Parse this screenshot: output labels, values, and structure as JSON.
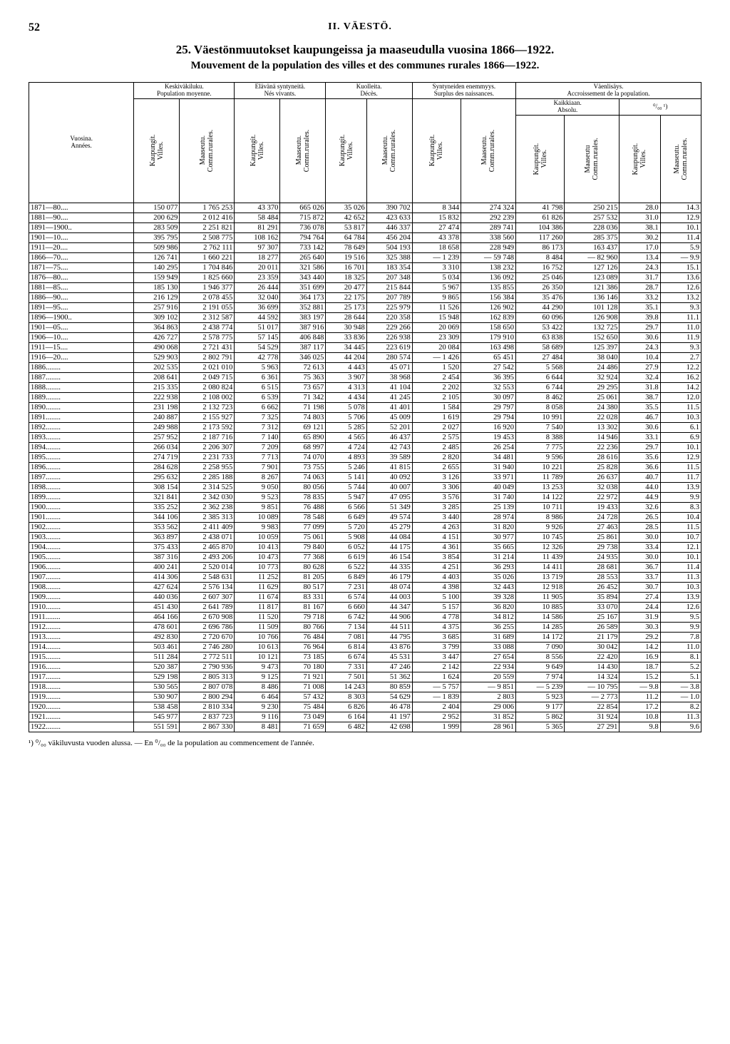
{
  "page_number": "52",
  "chapter": "II. VÄESTÖ.",
  "title_fi": "25. Väestönmuutokset kaupungeissa ja maaseudulla vuosina 1866—1922.",
  "title_fr": "Mouvement de la population des villes et des communes rurales 1866—1922.",
  "headers": {
    "col_year_a": "Vuosina.",
    "col_year_b": "Années.",
    "grp1_a": "Keskiväkiluku.",
    "grp1_b": "Population moyenne.",
    "grp2_a": "Elävänä syntyneitä.",
    "grp2_b": "Nés vivants.",
    "grp3_a": "Kuolleita.",
    "grp3_b": "Décès.",
    "grp4_a": "Syntyneiden enemmyys.",
    "grp4_b": "Surplus des naissances.",
    "grp5": "Väenlisäys.",
    "grp5b": "Accroissement de la population.",
    "grp5_abs_a": "Kaikkiaan.",
    "grp5_abs_b": "Absolu.",
    "grp5_pct": "⁰/₀₀ ¹)",
    "sub_villes": "Kaupungit. Villes.",
    "sub_rurales": "Maaseutu. Comm.rurales.",
    "sub_rurales2": "Maaseutu Comm.rurales."
  },
  "footnote": "¹) ⁰/₀₀ väkiluvusta vuoden alussa. — En ⁰/₀₀ de la population au commencement de l'année.",
  "rows": [
    {
      "year": "1871—80....",
      "d": [
        "150 077",
        "1 765 253",
        "43 370",
        "665 026",
        "35 026",
        "390 702",
        "8 344",
        "274 324",
        "41 798",
        "250 215",
        "28.0",
        "14.3"
      ]
    },
    {
      "year": "1881—90....",
      "d": [
        "200 629",
        "2 012 416",
        "58 484",
        "715 872",
        "42 652",
        "423 633",
        "15 832",
        "292 239",
        "61 826",
        "257 532",
        "31.0",
        "12.9"
      ]
    },
    {
      "year": "1891—1900..",
      "d": [
        "283 509",
        "2 251 821",
        "81 291",
        "736 078",
        "53 817",
        "446 337",
        "27 474",
        "289 741",
        "104 386",
        "228 036",
        "38.1",
        "10.1"
      ]
    },
    {
      "year": "1901—10....",
      "d": [
        "395 795",
        "2 508 775",
        "108 162",
        "794 764",
        "64 784",
        "456 204",
        "43 378",
        "338 560",
        "117 260",
        "285 375",
        "30.2",
        "11.4"
      ]
    },
    {
      "year": "1911—20....",
      "d": [
        "509 986",
        "2 762 111",
        "97 307",
        "733 142",
        "78 649",
        "504 193",
        "18 658",
        "228 949",
        "86 173",
        "163 437",
        "17.0",
        "5.9"
      ]
    },
    {
      "year": "1866—70....",
      "d": [
        "126 741",
        "1 660 221",
        "18 277",
        "265 640",
        "19 516",
        "325 388",
        "— 1 239",
        "— 59 748",
        "8 484",
        "— 82 960",
        "13.4",
        "— 9.9"
      ]
    },
    {
      "year": "1871—75....",
      "d": [
        "140 295",
        "1 704 846",
        "20 011",
        "321 586",
        "16 701",
        "183 354",
        "3 310",
        "138 232",
        "16 752",
        "127 126",
        "24.3",
        "15.1"
      ]
    },
    {
      "year": "1876—80....",
      "d": [
        "159 949",
        "1 825 660",
        "23 359",
        "343 440",
        "18 325",
        "207 348",
        "5 034",
        "136 092",
        "25 046",
        "123 089",
        "31.7",
        "13.6"
      ]
    },
    {
      "year": "1881—85....",
      "d": [
        "185 130",
        "1 946 377",
        "26 444",
        "351 699",
        "20 477",
        "215 844",
        "5 967",
        "135 855",
        "26 350",
        "121 386",
        "28.7",
        "12.6"
      ]
    },
    {
      "year": "1886—90....",
      "d": [
        "216 129",
        "2 078 455",
        "32 040",
        "364 173",
        "22 175",
        "207 789",
        "9 865",
        "156 384",
        "35 476",
        "136 146",
        "33.2",
        "13.2"
      ]
    },
    {
      "year": "1891—95....",
      "d": [
        "257 916",
        "2 191 055",
        "36 699",
        "352 881",
        "25 173",
        "225 979",
        "11 526",
        "126 902",
        "44 290",
        "101 128",
        "35.1",
        "9.3"
      ]
    },
    {
      "year": "1896—1900..",
      "d": [
        "309 102",
        "2 312 587",
        "44 592",
        "383 197",
        "28 644",
        "220 358",
        "15 948",
        "162 839",
        "60 096",
        "126 908",
        "39.8",
        "11.1"
      ]
    },
    {
      "year": "1901—05....",
      "d": [
        "364 863",
        "2 438 774",
        "51 017",
        "387 916",
        "30 948",
        "229 266",
        "20 069",
        "158 650",
        "53 422",
        "132 725",
        "29.7",
        "11.0"
      ]
    },
    {
      "year": "1906—10....",
      "d": [
        "426 727",
        "2 578 775",
        "57 145",
        "406 848",
        "33 836",
        "226 938",
        "23 309",
        "179 910",
        "63 838",
        "152 650",
        "30.6",
        "11.9"
      ]
    },
    {
      "year": "1911—15....",
      "d": [
        "490 068",
        "2 721 431",
        "54 529",
        "387 117",
        "34 445",
        "223 619",
        "20 084",
        "163 498",
        "58 689",
        "125 397",
        "24.3",
        "9.3"
      ]
    },
    {
      "year": "1916—20....",
      "d": [
        "529 903",
        "2 802 791",
        "42 778",
        "346 025",
        "44 204",
        "280 574",
        "— 1 426",
        "65 451",
        "27 484",
        "38 040",
        "10.4",
        "2.7"
      ]
    },
    {
      "year": "1886........",
      "d": [
        "202 535",
        "2 021 010",
        "5 963",
        "72 613",
        "4 443",
        "45 071",
        "1 520",
        "27 542",
        "5 568",
        "24 486",
        "27.9",
        "12.2"
      ]
    },
    {
      "year": "1887........",
      "d": [
        "208 641",
        "2 049 715",
        "6 361",
        "75 363",
        "3 907",
        "38 968",
        "2 454",
        "36 395",
        "6 644",
        "32 924",
        "32.4",
        "16.2"
      ]
    },
    {
      "year": "1888........",
      "d": [
        "215 335",
        "2 080 824",
        "6 515",
        "73 657",
        "4 313",
        "41 104",
        "2 202",
        "32 553",
        "6 744",
        "29 295",
        "31.8",
        "14.2"
      ]
    },
    {
      "year": "1889........",
      "d": [
        "222 938",
        "2 108 002",
        "6 539",
        "71 342",
        "4 434",
        "41 245",
        "2 105",
        "30 097",
        "8 462",
        "25 061",
        "38.7",
        "12.0"
      ]
    },
    {
      "year": "1890........",
      "d": [
        "231 198",
        "2 132 723",
        "6 662",
        "71 198",
        "5 078",
        "41 401",
        "1 584",
        "29 797",
        "8 058",
        "24 380",
        "35.5",
        "11.5"
      ]
    },
    {
      "year": "1891........",
      "d": [
        "240 887",
        "2 155 927",
        "7 325",
        "74 803",
        "5 706",
        "45 009",
        "1 619",
        "29 794",
        "10 991",
        "22 028",
        "46.7",
        "10.3"
      ]
    },
    {
      "year": "1892........",
      "d": [
        "249 988",
        "2 173 592",
        "7 312",
        "69 121",
        "5 285",
        "52 201",
        "2 027",
        "16 920",
        "7 540",
        "13 302",
        "30.6",
        "6.1"
      ]
    },
    {
      "year": "1893........",
      "d": [
        "257 952",
        "2 187 716",
        "7 140",
        "65 890",
        "4 565",
        "46 437",
        "2 575",
        "19 453",
        "8 388",
        "14 946",
        "33.1",
        "6.9"
      ]
    },
    {
      "year": "1894........",
      "d": [
        "266 034",
        "2 206 307",
        "7 209",
        "68 997",
        "4 724",
        "42 743",
        "2 485",
        "26 254",
        "7 775",
        "22 236",
        "29.7",
        "10.1"
      ]
    },
    {
      "year": "1895........",
      "d": [
        "274 719",
        "2 231 733",
        "7 713",
        "74 070",
        "4 893",
        "39 589",
        "2 820",
        "34 481",
        "9 596",
        "28 616",
        "35.6",
        "12.9"
      ]
    },
    {
      "year": "1896........",
      "d": [
        "284 628",
        "2 258 955",
        "7 901",
        "73 755",
        "5 246",
        "41 815",
        "2 655",
        "31 940",
        "10 221",
        "25 828",
        "36.6",
        "11.5"
      ]
    },
    {
      "year": "1897........",
      "d": [
        "295 632",
        "2 285 188",
        "8 267",
        "74 063",
        "5 141",
        "40 092",
        "3 126",
        "33 971",
        "11 789",
        "26 637",
        "40.7",
        "11.7"
      ]
    },
    {
      "year": "1898........",
      "d": [
        "308 154",
        "2 314 525",
        "9 050",
        "80 056",
        "5 744",
        "40 007",
        "3 306",
        "40 049",
        "13 253",
        "32 038",
        "44.0",
        "13.9"
      ]
    },
    {
      "year": "1899........",
      "d": [
        "321 841",
        "2 342 030",
        "9 523",
        "78 835",
        "5 947",
        "47 095",
        "3 576",
        "31 740",
        "14 122",
        "22 972",
        "44.9",
        "9.9"
      ]
    },
    {
      "year": "1900........",
      "d": [
        "335 252",
        "2 362 238",
        "9 851",
        "76 488",
        "6 566",
        "51 349",
        "3 285",
        "25 139",
        "10 711",
        "19 433",
        "32.6",
        "8.3"
      ]
    },
    {
      "year": "1901........",
      "d": [
        "344 106",
        "2 385 313",
        "10 089",
        "78 548",
        "6 649",
        "49 574",
        "3 440",
        "28 974",
        "8 986",
        "24 728",
        "26.5",
        "10.4"
      ]
    },
    {
      "year": "1902........",
      "d": [
        "353 562",
        "2 411 409",
        "9 983",
        "77 099",
        "5 720",
        "45 279",
        "4 263",
        "31 820",
        "9 926",
        "27 463",
        "28.5",
        "11.5"
      ]
    },
    {
      "year": "1903........",
      "d": [
        "363 897",
        "2 438 071",
        "10 059",
        "75 061",
        "5 908",
        "44 084",
        "4 151",
        "30 977",
        "10 745",
        "25 861",
        "30.0",
        "10.7"
      ]
    },
    {
      "year": "1904........",
      "d": [
        "375 433",
        "2 465 870",
        "10 413",
        "79 840",
        "6 052",
        "44 175",
        "4 361",
        "35 665",
        "12 326",
        "29 738",
        "33.4",
        "12.1"
      ]
    },
    {
      "year": "1905........",
      "d": [
        "387 316",
        "2 493 206",
        "10 473",
        "77 368",
        "6 619",
        "46 154",
        "3 854",
        "31 214",
        "11 439",
        "24 935",
        "30.0",
        "10.1"
      ]
    },
    {
      "year": "1906........",
      "d": [
        "400 241",
        "2 520 014",
        "10 773",
        "80 628",
        "6 522",
        "44 335",
        "4 251",
        "36 293",
        "14 411",
        "28 681",
        "36.7",
        "11.4"
      ]
    },
    {
      "year": "1907........",
      "d": [
        "414 306",
        "2 548 631",
        "11 252",
        "81 205",
        "6 849",
        "46 179",
        "4 403",
        "35 026",
        "13 719",
        "28 553",
        "33.7",
        "11.3"
      ]
    },
    {
      "year": "1908........",
      "d": [
        "427 624",
        "2 576 134",
        "11 629",
        "80 517",
        "7 231",
        "48 074",
        "4 398",
        "32 443",
        "12 918",
        "26 452",
        "30.7",
        "10.3"
      ]
    },
    {
      "year": "1909........",
      "d": [
        "440 036",
        "2 607 307",
        "11 674",
        "83 331",
        "6 574",
        "44 003",
        "5 100",
        "39 328",
        "11 905",
        "35 894",
        "27.4",
        "13.9"
      ]
    },
    {
      "year": "1910........",
      "d": [
        "451 430",
        "2 641 789",
        "11 817",
        "81 167",
        "6 660",
        "44 347",
        "5 157",
        "36 820",
        "10 885",
        "33 070",
        "24.4",
        "12.6"
      ]
    },
    {
      "year": "1911........",
      "d": [
        "464 166",
        "2 670 908",
        "11 520",
        "79 718",
        "6 742",
        "44 906",
        "4 778",
        "34 812",
        "14 586",
        "25 167",
        "31.9",
        "9.5"
      ]
    },
    {
      "year": "1912........",
      "d": [
        "478 601",
        "2 696 786",
        "11 509",
        "80 766",
        "7 134",
        "44 511",
        "4 375",
        "36 255",
        "14 285",
        "26 589",
        "30.3",
        "9.9"
      ]
    },
    {
      "year": "1913........",
      "d": [
        "492 830",
        "2 720 670",
        "10 766",
        "76 484",
        "7 081",
        "44 795",
        "3 685",
        "31 689",
        "14 172",
        "21 179",
        "29.2",
        "7.8"
      ]
    },
    {
      "year": "1914........",
      "d": [
        "503 461",
        "2 746 280",
        "10 613",
        "76 964",
        "6 814",
        "43 876",
        "3 799",
        "33 088",
        "7 090",
        "30 042",
        "14.2",
        "11.0"
      ]
    },
    {
      "year": "1915........",
      "d": [
        "511 284",
        "2 772 511",
        "10 121",
        "73 185",
        "6 674",
        "45 531",
        "3 447",
        "27 654",
        "8 556",
        "22 420",
        "16.9",
        "8.1"
      ]
    },
    {
      "year": "1916........",
      "d": [
        "520 387",
        "2 790 936",
        "9 473",
        "70 180",
        "7 331",
        "47 246",
        "2 142",
        "22 934",
        "9 649",
        "14 430",
        "18.7",
        "5.2"
      ]
    },
    {
      "year": "1917........",
      "d": [
        "529 198",
        "2 805 313",
        "9 125",
        "71 921",
        "7 501",
        "51 362",
        "1 624",
        "20 559",
        "7 974",
        "14 324",
        "15.2",
        "5.1"
      ]
    },
    {
      "year": "1918........",
      "d": [
        "530 565",
        "2 807 078",
        "8 486",
        "71 008",
        "14 243",
        "80 859",
        "— 5 757",
        "— 9 851",
        "— 5 239",
        "— 10 795",
        "— 9.8",
        "— 3.8"
      ]
    },
    {
      "year": "1919........",
      "d": [
        "530 907",
        "2 800 294",
        "6 464",
        "57 432",
        "8 303",
        "54 629",
        "— 1 839",
        "2 803",
        "5 923",
        "— 2 773",
        "11.2",
        "— 1.0"
      ]
    },
    {
      "year": "1920........",
      "d": [
        "538 458",
        "2 810 334",
        "9 230",
        "75 484",
        "6 826",
        "46 478",
        "2 404",
        "29 006",
        "9 177",
        "22 854",
        "17.2",
        "8.2"
      ]
    },
    {
      "year": "1921........",
      "d": [
        "545 977",
        "2 837 723",
        "9 116",
        "73 049",
        "6 164",
        "41 197",
        "2 952",
        "31 852",
        "5 862",
        "31 924",
        "10.8",
        "11.3"
      ]
    },
    {
      "year": "1922........",
      "d": [
        "551 591",
        "2 867 330",
        "8 481",
        "71 659",
        "6 482",
        "42 698",
        "1 999",
        "28 961",
        "5 365",
        "27 291",
        "9.8",
        "9.6"
      ]
    }
  ]
}
